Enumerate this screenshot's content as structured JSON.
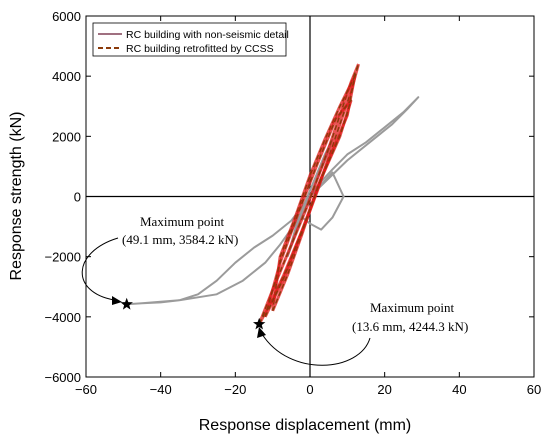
{
  "chart_data": {
    "type": "line",
    "xlabel": "Response displacement (mm)",
    "ylabel": "Response strength (kN)",
    "xlim": [
      -60,
      60
    ],
    "ylim": [
      -6000,
      6000
    ],
    "xticks": [
      -60,
      -40,
      -20,
      0,
      20,
      40,
      60
    ],
    "yticks": [
      -6000,
      -4000,
      -2000,
      0,
      2000,
      4000,
      6000
    ],
    "xtick_labels": [
      "−60",
      "−40",
      "−20",
      "0",
      "20",
      "40",
      "60"
    ],
    "ytick_labels": [
      "−6000",
      "−4000",
      "−2000",
      "0",
      "2000",
      "4000",
      "6000"
    ],
    "grid": false,
    "legend_position": "top-left",
    "series": [
      {
        "name": "RC building with non-seismic detail",
        "color": "#9b9b9b",
        "legend_color": "#a07080",
        "style": "solid",
        "loops": [
          {
            "x": [
              0,
              5,
              10,
              16,
              22,
              26,
              29,
              25,
              20,
              15,
              10,
              6,
              3,
              1,
              0
            ],
            "y": [
              0,
              600,
              1200,
              1800,
              2400,
              2900,
              3300,
              2800,
              2300,
              1800,
              1400,
              900,
              500,
              200,
              0
            ]
          },
          {
            "x": [
              0,
              -5,
              -10,
              -15,
              -20,
              -25,
              -30,
              -35,
              -40,
              -45,
              -49.1,
              -45,
              -35,
              -25,
              -18,
              -12,
              -8,
              -4,
              -1,
              0
            ],
            "y": [
              0,
              -800,
              -1300,
              -1700,
              -2200,
              -2800,
              -3250,
              -3450,
              -3520,
              -3550,
              -3584.2,
              -3550,
              -3450,
              -3250,
              -2800,
              -2200,
              -1600,
              -900,
              -300,
              0
            ]
          },
          {
            "x": [
              0,
              3,
              6,
              9,
              6,
              3,
              0,
              -3,
              -6,
              -3,
              0
            ],
            "y": [
              0,
              400,
              800,
              0,
              -700,
              -1100,
              -900,
              -600,
              -1400,
              -700,
              0
            ]
          },
          {
            "x": [
              -6,
              -4,
              -2,
              0,
              2,
              4,
              6,
              4,
              2,
              0,
              -2,
              -4,
              -6
            ],
            "y": [
              -2000,
              -1300,
              -600,
              0,
              600,
              1200,
              1900,
              1400,
              800,
              200,
              -400,
              -1100,
              -2000
            ]
          }
        ]
      },
      {
        "name": "RC building retrofitted by CCSS",
        "color": "#8b3a0a",
        "legend_color": "#8b3a0a",
        "style": "dashed",
        "loops": [
          {
            "x": [
              -13.6,
              -10,
              -7,
              -4,
              -1,
              2,
              5,
              8,
              11,
              13,
              11,
              8,
              5,
              2,
              -1,
              -4,
              -7,
              -10,
              -13.6
            ],
            "y": [
              -4244.3,
              -3400,
              -2600,
              -1700,
              -800,
              200,
              1300,
              2400,
              3500,
              4400,
              3800,
              2700,
              1600,
              600,
              -400,
              -1300,
              -2200,
              -3100,
              -4244.3
            ]
          },
          {
            "x": [
              -10,
              -6,
              -2,
              2,
              6,
              10,
              12,
              8,
              4,
              0,
              -4,
              -8,
              -10
            ],
            "y": [
              -3800,
              -2600,
              -1200,
              300,
              1500,
              2700,
              4000,
              3000,
              1900,
              700,
              -700,
              -2000,
              -3800
            ]
          },
          {
            "x": [
              -12,
              -7,
              -2,
              3,
              8,
              11,
              7,
              2,
              -3,
              -8,
              -12
            ],
            "y": [
              -4000,
              -2700,
              -1100,
              600,
              2000,
              3200,
              2600,
              1100,
              -500,
              -2200,
              -4000
            ]
          }
        ],
        "fill_color": "#e01818"
      }
    ],
    "points": [
      {
        "x": -49.1,
        "y": -3584.2,
        "marker": "star"
      },
      {
        "x": -13.6,
        "y": -4244.3,
        "marker": "star"
      }
    ],
    "annotations": [
      {
        "lines": [
          "Maximum point",
          "(49.1 mm, 3584.2 kN)"
        ],
        "target_x": -49.1,
        "target_y": -3584.2
      },
      {
        "lines": [
          "Maximum point",
          "(13.6 mm, 4244.3 kN)"
        ],
        "target_x": -13.6,
        "target_y": -4244.3
      }
    ]
  }
}
